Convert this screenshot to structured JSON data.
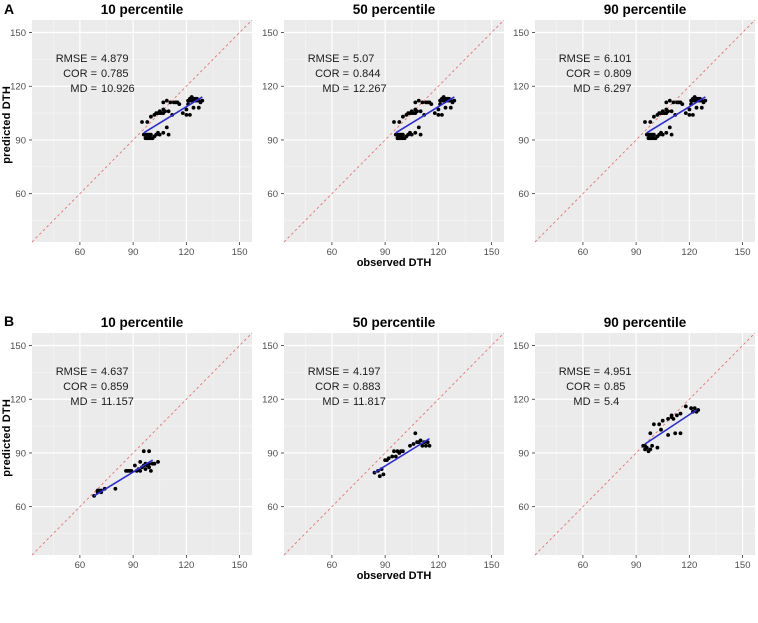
{
  "figure": {
    "panel_labels": {
      "row_a": "A",
      "row_b": "B"
    },
    "axes": {
      "xlabel": "observed DTH",
      "ylabel": "predicted DTH",
      "tick_values": [
        60,
        90,
        120,
        150
      ],
      "minor_tick_values": [
        45,
        75,
        105,
        135
      ],
      "domain_min": 33,
      "domain_max": 157
    },
    "stats_labels": {
      "rmse": "RMSE",
      "cor": "COR",
      "md": "MD"
    },
    "colors": {
      "panel_background": "#ebebeb",
      "grid_major": "#ffffff",
      "grid_minor": "#ffffff",
      "identity_line": "#e87373",
      "regression_line": "#2b2bd4",
      "point": "#000000",
      "tick_mark": "#333333",
      "tick_label": "#4d4d4d"
    }
  },
  "chart_data": [
    {
      "id": "a-10",
      "type": "scatter",
      "row": "A",
      "col": 0,
      "title": "10 percentile",
      "stats": {
        "rmse": "4.879",
        "cor": "0.785",
        "md": "10.926"
      },
      "xlabel_visible": false,
      "fit_line": [
        [
          96,
          94
        ],
        [
          129,
          114
        ]
      ],
      "points": [
        [
          96,
          93
        ],
        [
          97,
          93
        ],
        [
          98,
          93
        ],
        [
          99,
          93
        ],
        [
          100,
          93
        ],
        [
          97,
          91
        ],
        [
          98,
          91
        ],
        [
          99,
          91
        ],
        [
          100,
          91
        ],
        [
          101,
          91
        ],
        [
          102,
          92
        ],
        [
          103,
          93
        ],
        [
          104,
          94
        ],
        [
          105,
          93
        ],
        [
          107,
          94
        ],
        [
          110,
          93
        ],
        [
          95,
          100
        ],
        [
          98,
          100
        ],
        [
          100,
          103
        ],
        [
          102,
          104
        ],
        [
          103,
          105
        ],
        [
          104,
          105
        ],
        [
          105,
          105
        ],
        [
          106,
          105
        ],
        [
          107,
          105
        ],
        [
          105,
          106
        ],
        [
          107,
          107
        ],
        [
          108,
          106
        ],
        [
          110,
          106
        ],
        [
          112,
          104
        ],
        [
          109,
          97
        ],
        [
          107,
          111
        ],
        [
          109,
          112
        ],
        [
          111,
          111
        ],
        [
          113,
          111
        ],
        [
          114,
          111
        ],
        [
          115,
          111
        ],
        [
          116,
          110
        ],
        [
          118,
          105
        ],
        [
          120,
          104
        ],
        [
          122,
          104
        ],
        [
          120,
          107
        ],
        [
          121,
          110
        ],
        [
          121,
          112
        ],
        [
          122,
          112
        ],
        [
          122,
          113
        ],
        [
          123,
          112
        ],
        [
          123,
          114
        ],
        [
          124,
          112
        ],
        [
          124,
          113
        ],
        [
          125,
          112
        ],
        [
          125,
          113
        ],
        [
          126,
          112
        ],
        [
          126,
          113
        ],
        [
          127,
          112
        ],
        [
          124,
          108
        ],
        [
          127,
          108
        ],
        [
          128,
          111
        ],
        [
          129,
          112
        ]
      ]
    },
    {
      "id": "a-50",
      "type": "scatter",
      "row": "A",
      "col": 1,
      "title": "50 percentile",
      "stats": {
        "rmse": "5.07",
        "cor": "0.844",
        "md": "12.267"
      },
      "xlabel_visible": true,
      "fit_line": [
        [
          96,
          94
        ],
        [
          129,
          114
        ]
      ],
      "points": [
        [
          96,
          93
        ],
        [
          97,
          93
        ],
        [
          98,
          93
        ],
        [
          99,
          93
        ],
        [
          100,
          93
        ],
        [
          97,
          91
        ],
        [
          98,
          91
        ],
        [
          99,
          91
        ],
        [
          100,
          91
        ],
        [
          101,
          91
        ],
        [
          102,
          92
        ],
        [
          103,
          93
        ],
        [
          104,
          94
        ],
        [
          105,
          93
        ],
        [
          107,
          94
        ],
        [
          110,
          93
        ],
        [
          95,
          100
        ],
        [
          98,
          100
        ],
        [
          100,
          103
        ],
        [
          102,
          104
        ],
        [
          103,
          105
        ],
        [
          104,
          105
        ],
        [
          105,
          105
        ],
        [
          106,
          105
        ],
        [
          107,
          105
        ],
        [
          105,
          106
        ],
        [
          107,
          107
        ],
        [
          108,
          106
        ],
        [
          110,
          106
        ],
        [
          112,
          104
        ],
        [
          109,
          97
        ],
        [
          107,
          111
        ],
        [
          109,
          112
        ],
        [
          111,
          111
        ],
        [
          113,
          111
        ],
        [
          114,
          111
        ],
        [
          115,
          111
        ],
        [
          116,
          110
        ],
        [
          118,
          105
        ],
        [
          120,
          104
        ],
        [
          122,
          104
        ],
        [
          120,
          107
        ],
        [
          121,
          110
        ],
        [
          121,
          112
        ],
        [
          122,
          112
        ],
        [
          122,
          113
        ],
        [
          123,
          112
        ],
        [
          123,
          114
        ],
        [
          124,
          112
        ],
        [
          124,
          113
        ],
        [
          125,
          112
        ],
        [
          125,
          113
        ],
        [
          126,
          112
        ],
        [
          126,
          113
        ],
        [
          127,
          112
        ],
        [
          124,
          108
        ],
        [
          127,
          108
        ],
        [
          128,
          111
        ],
        [
          129,
          112
        ]
      ]
    },
    {
      "id": "a-90",
      "type": "scatter",
      "row": "A",
      "col": 2,
      "title": "90 percentile",
      "stats": {
        "rmse": "6.101",
        "cor": "0.809",
        "md": "6.297"
      },
      "xlabel_visible": false,
      "fit_line": [
        [
          96,
          94
        ],
        [
          129,
          114
        ]
      ],
      "points": [
        [
          96,
          93
        ],
        [
          97,
          93
        ],
        [
          98,
          93
        ],
        [
          99,
          93
        ],
        [
          100,
          93
        ],
        [
          97,
          91
        ],
        [
          98,
          91
        ],
        [
          99,
          91
        ],
        [
          100,
          91
        ],
        [
          101,
          91
        ],
        [
          102,
          92
        ],
        [
          103,
          93
        ],
        [
          104,
          94
        ],
        [
          105,
          93
        ],
        [
          107,
          94
        ],
        [
          110,
          93
        ],
        [
          95,
          100
        ],
        [
          98,
          100
        ],
        [
          100,
          103
        ],
        [
          102,
          104
        ],
        [
          103,
          105
        ],
        [
          104,
          105
        ],
        [
          105,
          105
        ],
        [
          106,
          105
        ],
        [
          107,
          105
        ],
        [
          105,
          106
        ],
        [
          107,
          107
        ],
        [
          108,
          106
        ],
        [
          110,
          106
        ],
        [
          112,
          104
        ],
        [
          109,
          97
        ],
        [
          107,
          111
        ],
        [
          109,
          112
        ],
        [
          111,
          111
        ],
        [
          113,
          111
        ],
        [
          114,
          111
        ],
        [
          115,
          111
        ],
        [
          116,
          110
        ],
        [
          118,
          105
        ],
        [
          120,
          104
        ],
        [
          122,
          104
        ],
        [
          120,
          107
        ],
        [
          121,
          110
        ],
        [
          121,
          112
        ],
        [
          122,
          112
        ],
        [
          122,
          113
        ],
        [
          123,
          112
        ],
        [
          123,
          114
        ],
        [
          124,
          112
        ],
        [
          124,
          113
        ],
        [
          125,
          112
        ],
        [
          125,
          113
        ],
        [
          126,
          112
        ],
        [
          126,
          113
        ],
        [
          127,
          112
        ],
        [
          124,
          108
        ],
        [
          127,
          108
        ],
        [
          128,
          111
        ],
        [
          129,
          112
        ]
      ]
    },
    {
      "id": "b-10",
      "type": "scatter",
      "row": "B",
      "col": 0,
      "title": "10 percentile",
      "stats": {
        "rmse": "4.637",
        "cor": "0.859",
        "md": "11.157"
      },
      "xlabel_visible": false,
      "fit_line": [
        [
          68,
          66
        ],
        [
          101,
          86
        ]
      ],
      "points": [
        [
          68,
          66
        ],
        [
          70,
          68
        ],
        [
          70,
          69
        ],
        [
          71,
          69
        ],
        [
          72,
          68
        ],
        [
          72,
          69
        ],
        [
          74,
          70
        ],
        [
          80,
          70
        ],
        [
          86,
          80
        ],
        [
          87,
          80
        ],
        [
          88,
          80
        ],
        [
          89,
          80
        ],
        [
          91,
          83
        ],
        [
          92,
          80
        ],
        [
          93,
          81
        ],
        [
          94,
          85
        ],
        [
          94,
          80
        ],
        [
          95,
          82
        ],
        [
          96,
          83
        ],
        [
          97,
          81
        ],
        [
          97,
          84
        ],
        [
          98,
          83
        ],
        [
          99,
          82
        ],
        [
          99,
          84
        ],
        [
          100,
          80
        ],
        [
          101,
          84
        ],
        [
          102,
          84
        ],
        [
          104,
          85
        ],
        [
          96,
          91
        ],
        [
          99,
          91
        ]
      ]
    },
    {
      "id": "b-50",
      "type": "scatter",
      "row": "B",
      "col": 1,
      "title": "50 percentile",
      "stats": {
        "rmse": "4.197",
        "cor": "0.883",
        "md": "11.817"
      },
      "xlabel_visible": true,
      "fit_line": [
        [
          84,
          79
        ],
        [
          115,
          98
        ]
      ],
      "points": [
        [
          84,
          79
        ],
        [
          87,
          77
        ],
        [
          89,
          78
        ],
        [
          86,
          80
        ],
        [
          88,
          81
        ],
        [
          90,
          86
        ],
        [
          91,
          86
        ],
        [
          92,
          87
        ],
        [
          94,
          88
        ],
        [
          96,
          88
        ],
        [
          95,
          91
        ],
        [
          97,
          91
        ],
        [
          98,
          90
        ],
        [
          99,
          91
        ],
        [
          100,
          91
        ],
        [
          104,
          94
        ],
        [
          106,
          95
        ],
        [
          107,
          101
        ],
        [
          108,
          96
        ],
        [
          109,
          96
        ],
        [
          110,
          97
        ],
        [
          111,
          94
        ],
        [
          112,
          96
        ],
        [
          113,
          94
        ],
        [
          114,
          96
        ],
        [
          115,
          94
        ]
      ]
    },
    {
      "id": "b-90",
      "type": "scatter",
      "row": "B",
      "col": 2,
      "title": "90 percentile",
      "stats": {
        "rmse": "4.951",
        "cor": "0.85",
        "md": "5.4"
      },
      "xlabel_visible": false,
      "fit_line": [
        [
          95,
          95
        ],
        [
          124,
          114
        ]
      ],
      "points": [
        [
          94,
          94
        ],
        [
          95,
          94
        ],
        [
          95,
          92
        ],
        [
          96,
          93
        ],
        [
          97,
          91
        ],
        [
          98,
          92
        ],
        [
          99,
          94
        ],
        [
          102,
          93
        ],
        [
          98,
          101
        ],
        [
          100,
          106
        ],
        [
          103,
          106
        ],
        [
          104,
          103
        ],
        [
          105,
          108
        ],
        [
          108,
          109
        ],
        [
          108,
          100
        ],
        [
          112,
          101
        ],
        [
          115,
          101
        ],
        [
          110,
          110
        ],
        [
          110,
          111
        ],
        [
          111,
          109
        ],
        [
          113,
          111
        ],
        [
          115,
          112
        ],
        [
          118,
          116
        ],
        [
          121,
          115
        ],
        [
          123,
          115
        ],
        [
          125,
          114
        ],
        [
          122,
          113
        ],
        [
          124,
          113
        ]
      ]
    }
  ]
}
